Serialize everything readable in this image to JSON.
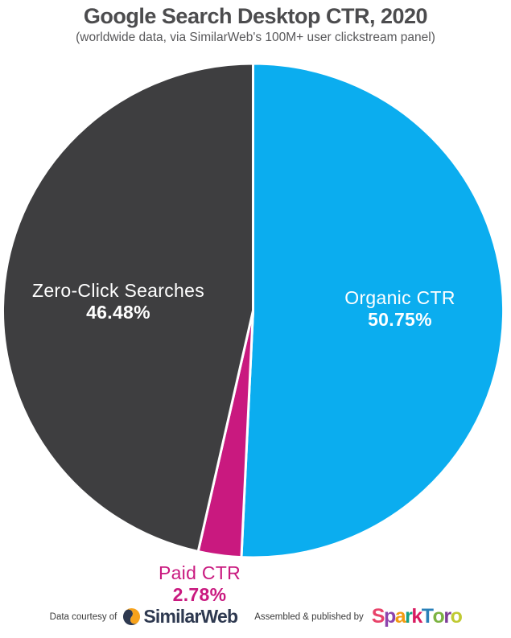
{
  "header": {
    "title": "Google Search Desktop CTR, 2020",
    "subtitle": "(worldwide data, via SimilarWeb's 100M+ user clickstream panel)"
  },
  "chart_data": {
    "type": "pie",
    "title": "Google Search Desktop CTR, 2020",
    "subtitle": "(worldwide data, via SimilarWeb's 100M+ user clickstream panel)",
    "start_angle_deg": -90,
    "direction": "clockwise",
    "legend": "none (labels drawn on/near slices)",
    "separator_color": "#FFFFFF",
    "slices": [
      {
        "label": "Organic CTR",
        "value": 50.75,
        "value_label": "50.75%",
        "color": "#0BADEF",
        "text_color": "#FFFFFF"
      },
      {
        "label": "Paid CTR",
        "value": 2.78,
        "value_label": "2.78%",
        "color": "#C9197F",
        "text_color": "#C9197F"
      },
      {
        "label": "Zero-Click Searches",
        "value": 46.48,
        "value_label": "46.48%",
        "color": "#3E3E40",
        "text_color": "#FFFFFF"
      }
    ]
  },
  "footer": {
    "left_caption": "Data courtesy of",
    "similarweb_brand": "SimilarWeb",
    "similarweb_colors": {
      "navy": "#2E3950",
      "orange": "#F7A21B"
    },
    "right_caption": "Assembled & published by",
    "sparktoro_letters": [
      {
        "ch": "S",
        "color": "#E8436A"
      },
      {
        "ch": "p",
        "color": "#8E44AD"
      },
      {
        "ch": "a",
        "color": "#F39C12"
      },
      {
        "ch": "r",
        "color": "#16A085"
      },
      {
        "ch": "k",
        "color": "#D81B60"
      },
      {
        "ch": "T",
        "color": "#2980B9"
      },
      {
        "ch": "o",
        "color": "#7CB342"
      },
      {
        "ch": "r",
        "color": "#7D3C98"
      },
      {
        "ch": "o",
        "color": "#C0CA33"
      }
    ]
  }
}
